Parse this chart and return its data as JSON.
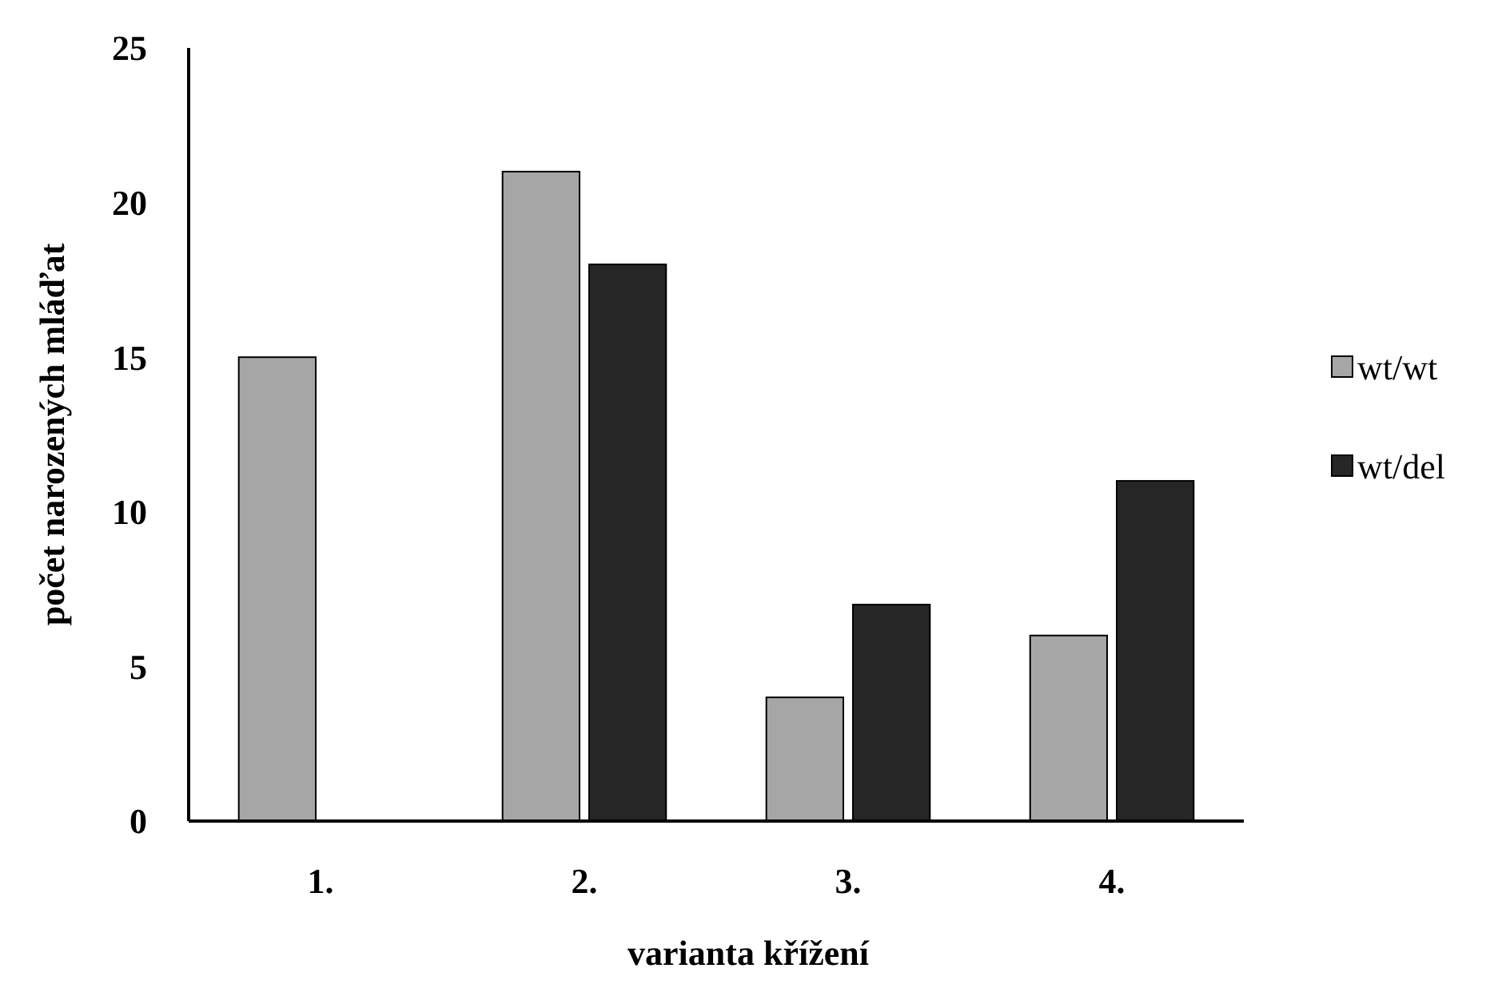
{
  "chart_data": {
    "type": "bar",
    "xlabel": "varianta  křížení",
    "ylabel": "počet narozených mláďat",
    "categories": [
      "1.",
      "2.",
      "3.",
      "4."
    ],
    "series": [
      {
        "name": "wt/wt",
        "color": "#a6a6a6",
        "values": [
          15,
          21,
          4,
          6
        ]
      },
      {
        "name": "wt/del",
        "color": "#262626",
        "values": [
          0,
          18,
          7,
          11
        ]
      }
    ],
    "ylim": [
      0,
      25
    ],
    "yticks": [
      0,
      5,
      10,
      15,
      20,
      25
    ],
    "legend": "right",
    "grid": false
  }
}
